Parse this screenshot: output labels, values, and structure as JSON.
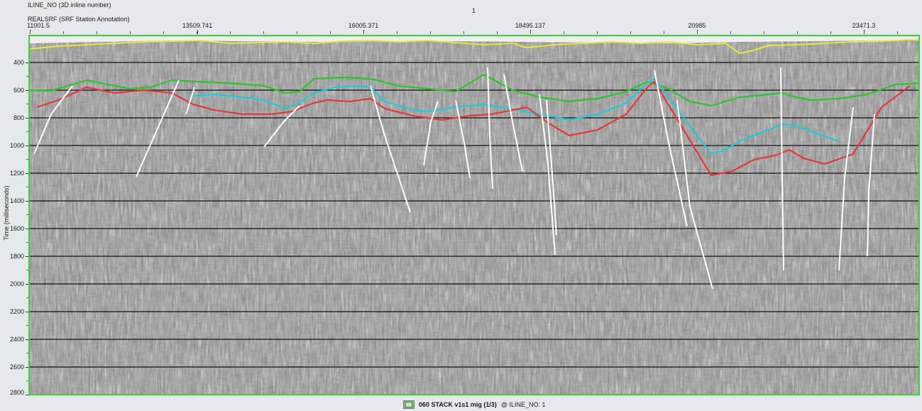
{
  "header": {
    "primary_key_label": "ILINE_NO (3D inline number)",
    "secondary_key_label": "REALSRF (SRF Station Annotation)",
    "inline_value": "1"
  },
  "x_axis": {
    "ticks": [
      "11001.5",
      "13509.741",
      "16005.371",
      "18495.137",
      "20985",
      "23471.3"
    ]
  },
  "y_axis": {
    "title": "Time (milliseconds)",
    "ticks": [
      "400",
      "600",
      "800",
      "1000",
      "1200",
      "1400",
      "1600",
      "1800",
      "2000",
      "2200",
      "2400",
      "2600",
      "2800"
    ]
  },
  "section": {
    "horizon_colors": {
      "yellow": "#e8e83a",
      "green": "#2ec42e",
      "cyan": "#22c9d6",
      "red": "#e23a3a",
      "fault": "#ffffff"
    },
    "frame_color": "#3fcf3f"
  },
  "footer": {
    "dataset_icon": "seismic-dataset-icon",
    "dataset_name": "060 STACK v1s1 mig (1/3)",
    "key_text": "@  ILINE_NO: 1"
  }
}
